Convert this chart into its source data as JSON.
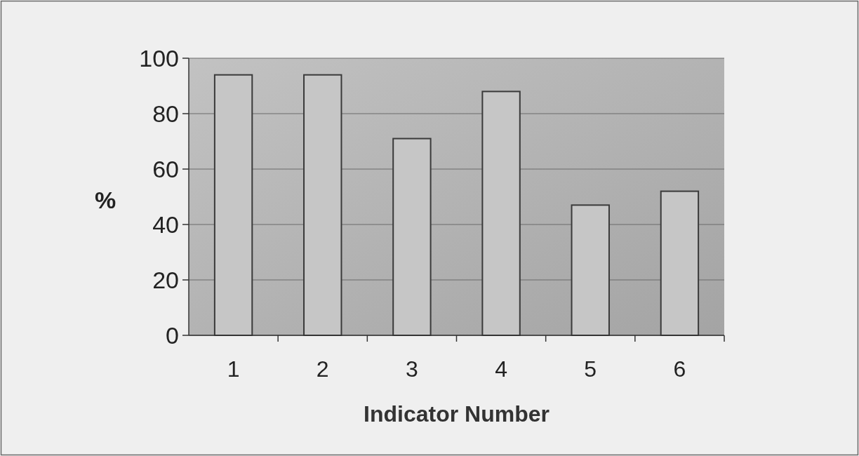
{
  "chart_data": {
    "type": "bar",
    "xlabel": "Indicator Number",
    "ylabel": "%",
    "categories": [
      "1",
      "2",
      "3",
      "4",
      "5",
      "6"
    ],
    "values": [
      94,
      94,
      71,
      88,
      47,
      52
    ],
    "color": "#c6c6c6",
    "ylim": [
      0,
      100
    ],
    "yticks": [
      0,
      20,
      40,
      60,
      80,
      100
    ],
    "grid": "y"
  }
}
